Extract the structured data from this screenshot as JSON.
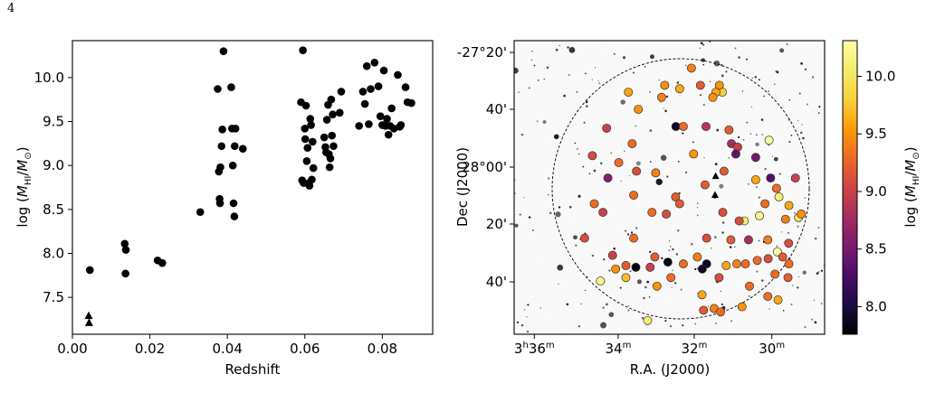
{
  "page_number": "4",
  "chart_data": [
    {
      "type": "scatter",
      "xlabel": "Redshift",
      "ylabel": "log (M_HI/M_⊙)",
      "xlim": [
        0.0,
        0.093
      ],
      "ylim": [
        7.08,
        10.42
      ],
      "xticks": [
        "0.00",
        "0.02",
        "0.04",
        "0.06",
        "0.08"
      ],
      "xtick_values": [
        0.0,
        0.02,
        0.04,
        0.06,
        0.08
      ],
      "yticks": [
        "7.5",
        "8.0",
        "8.5",
        "9.0",
        "9.5",
        "10.0"
      ],
      "ytick_values": [
        7.5,
        8.0,
        8.5,
        9.0,
        9.5,
        10.0
      ],
      "grid": false,
      "series": [
        {
          "marker": "circle",
          "color": "#000000",
          "points": [
            [
              0.0045,
              7.81
            ],
            [
              0.0135,
              8.11
            ],
            [
              0.0138,
              8.04
            ],
            [
              0.0137,
              7.77
            ],
            [
              0.022,
              7.92
            ],
            [
              0.0232,
              7.89
            ],
            [
              0.033,
              8.47
            ],
            [
              0.0375,
              9.87
            ],
            [
              0.038,
              8.62
            ],
            [
              0.0381,
              8.57
            ],
            [
              0.0378,
              8.93
            ],
            [
              0.0382,
              8.98
            ],
            [
              0.0385,
              9.22
            ],
            [
              0.0387,
              9.41
            ],
            [
              0.039,
              10.3
            ],
            [
              0.041,
              9.89
            ],
            [
              0.0412,
              9.42
            ],
            [
              0.0414,
              9.0
            ],
            [
              0.0416,
              8.57
            ],
            [
              0.0418,
              8.42
            ],
            [
              0.0419,
              9.22
            ],
            [
              0.0421,
              9.42
            ],
            [
              0.044,
              9.19
            ],
            [
              0.059,
              9.72
            ],
            [
              0.0593,
              8.83
            ],
            [
              0.0595,
              10.31
            ],
            [
              0.0597,
              8.8
            ],
            [
              0.06,
              9.42
            ],
            [
              0.0601,
              9.3
            ],
            [
              0.0603,
              9.68
            ],
            [
              0.0605,
              9.05
            ],
            [
              0.0607,
              9.2
            ],
            [
              0.061,
              8.8
            ],
            [
              0.0612,
              8.77
            ],
            [
              0.0614,
              9.53
            ],
            [
              0.0616,
              9.46
            ],
            [
              0.0618,
              8.84
            ],
            [
              0.062,
              9.27
            ],
            [
              0.0622,
              8.97
            ],
            [
              0.065,
              9.32
            ],
            [
              0.0653,
              9.21
            ],
            [
              0.0655,
              9.15
            ],
            [
              0.0657,
              9.52
            ],
            [
              0.066,
              9.69
            ],
            [
              0.0662,
              9.13
            ],
            [
              0.0664,
              8.98
            ],
            [
              0.0666,
              9.08
            ],
            [
              0.0668,
              9.75
            ],
            [
              0.067,
              9.34
            ],
            [
              0.0672,
              9.58
            ],
            [
              0.0674,
              9.22
            ],
            [
              0.069,
              9.6
            ],
            [
              0.0694,
              9.84
            ],
            [
              0.074,
              9.45
            ],
            [
              0.075,
              9.84
            ],
            [
              0.0755,
              9.7
            ],
            [
              0.076,
              10.13
            ],
            [
              0.0765,
              9.47
            ],
            [
              0.077,
              9.87
            ],
            [
              0.078,
              10.17
            ],
            [
              0.079,
              9.9
            ],
            [
              0.0795,
              9.56
            ],
            [
              0.08,
              9.46
            ],
            [
              0.0804,
              10.08
            ],
            [
              0.0808,
              9.45
            ],
            [
              0.0812,
              9.53
            ],
            [
              0.0816,
              9.35
            ],
            [
              0.082,
              9.45
            ],
            [
              0.0824,
              9.65
            ],
            [
              0.084,
              10.03
            ],
            [
              0.0845,
              9.44
            ],
            [
              0.0848,
              9.46
            ],
            [
              0.086,
              9.89
            ],
            [
              0.0865,
              9.72
            ],
            [
              0.0875,
              9.71
            ],
            [
              0.083,
              9.42
            ]
          ]
        },
        {
          "marker": "triangle",
          "color": "#000000",
          "points": [
            [
              0.0042,
              7.29
            ],
            [
              0.0043,
              7.21
            ]
          ]
        }
      ]
    },
    {
      "type": "scatter",
      "xlabel": "R.A. (J2000)",
      "ylabel": "Dec (J2000)",
      "xticks": [
        "3h36m",
        "34m",
        "32m",
        "30m"
      ],
      "yticks": [
        "-27°20'",
        "40'",
        "-28°00'",
        "20'",
        "40'"
      ],
      "colorbar": {
        "label": "log (M_HI/M_⊙)",
        "range": [
          7.76,
          10.31
        ],
        "ticks": [
          "8.0",
          "8.5",
          "9.0",
          "9.5",
          "10.0"
        ],
        "tick_values": [
          8.0,
          8.5,
          9.0,
          9.5,
          10.0
        ],
        "colormap": "inferno"
      },
      "points": [
        [
          67.05,
          -27.52,
          9.8
        ],
        [
          65.0,
          -27.52,
          9.6
        ],
        [
          57.1,
          -27.38,
          9.4
        ],
        [
          60.0,
          -27.48,
          9.2
        ],
        [
          66.1,
          -27.48,
          9.5
        ],
        [
          53.3,
          -27.5,
          9.6
        ],
        [
          48.5,
          -27.48,
          9.5
        ],
        [
          36.8,
          -27.52,
          9.6
        ],
        [
          47.5,
          -27.55,
          9.4
        ],
        [
          64.0,
          -27.55,
          9.5
        ],
        [
          40.0,
          -27.62,
          9.5
        ],
        [
          29.8,
          -27.73,
          9.0
        ],
        [
          52.1,
          -27.72,
          7.9
        ],
        [
          54.5,
          -27.72,
          9.3
        ],
        [
          61.8,
          -27.72,
          8.9
        ],
        [
          69.2,
          -27.74,
          9.2
        ],
        [
          70.0,
          -27.82,
          8.8
        ],
        [
          72.0,
          -27.84,
          9.0
        ],
        [
          38.0,
          -27.82,
          9.3
        ],
        [
          25.2,
          -27.89,
          9.1
        ],
        [
          33.7,
          -27.93,
          9.3
        ],
        [
          57.8,
          -27.88,
          9.5
        ],
        [
          71.4,
          -27.88,
          8.4
        ],
        [
          77.8,
          -27.9,
          8.5
        ],
        [
          39.4,
          -27.98,
          9.1
        ],
        [
          67.6,
          -27.98,
          9.2
        ],
        [
          82.1,
          -27.8,
          10.3
        ],
        [
          30.2,
          -28.02,
          8.6
        ],
        [
          45.6,
          -27.99,
          9.4
        ],
        [
          82.6,
          -28.02,
          8.3
        ],
        [
          77.8,
          -28.03,
          9.6
        ],
        [
          90.6,
          -28.02,
          9.0
        ],
        [
          61.5,
          -28.06,
          9.2
        ],
        [
          38.5,
          -28.12,
          9.3
        ],
        [
          52.0,
          -28.13,
          9.2
        ],
        [
          85.3,
          -28.13,
          10.1
        ],
        [
          84.5,
          -28.08,
          9.3
        ],
        [
          25.8,
          -28.17,
          9.3
        ],
        [
          53.3,
          -28.17,
          9.2
        ],
        [
          80.8,
          -28.17,
          9.3
        ],
        [
          88.5,
          -28.18,
          9.6
        ],
        [
          28.6,
          -28.22,
          9.0
        ],
        [
          44.4,
          -28.22,
          9.3
        ],
        [
          49.0,
          -28.23,
          9.1
        ],
        [
          67.2,
          -28.22,
          9.1
        ],
        [
          74.1,
          -28.27,
          10.1
        ],
        [
          72.5,
          -28.27,
          9.1
        ],
        [
          79.0,
          -28.24,
          10.2
        ],
        [
          87.4,
          -28.26,
          9.4
        ],
        [
          91.6,
          -28.25,
          10.0
        ],
        [
          92.5,
          -28.23,
          9.5
        ],
        [
          22.7,
          -28.37,
          9.1
        ],
        [
          38.5,
          -28.37,
          9.3
        ],
        [
          62.0,
          -28.37,
          9.1
        ],
        [
          69.8,
          -28.38,
          9.2
        ],
        [
          75.5,
          -28.38,
          8.8
        ],
        [
          81.7,
          -28.38,
          9.4
        ],
        [
          88.4,
          -28.4,
          9.1
        ],
        [
          84.8,
          -28.45,
          10.3
        ],
        [
          31.7,
          -28.47,
          9.0
        ],
        [
          45.3,
          -28.48,
          9.2
        ],
        [
          59.0,
          -28.48,
          9.4
        ],
        [
          49.5,
          -28.51,
          7.8
        ],
        [
          54.5,
          -28.52,
          9.3
        ],
        [
          62.0,
          -28.52,
          7.9
        ],
        [
          68.3,
          -28.53,
          9.6
        ],
        [
          71.7,
          -28.52,
          9.4
        ],
        [
          74.5,
          -28.52,
          9.3
        ],
        [
          78.3,
          -28.5,
          9.3
        ],
        [
          81.8,
          -28.49,
          9.1
        ],
        [
          88.5,
          -28.52,
          9.3
        ],
        [
          32.7,
          -28.55,
          9.5
        ],
        [
          36.0,
          -28.53,
          9.2
        ],
        [
          39.2,
          -28.54,
          7.8
        ],
        [
          43.8,
          -28.54,
          9.0
        ],
        [
          60.6,
          -28.55,
          7.9
        ],
        [
          50.5,
          -28.6,
          9.3
        ],
        [
          36.0,
          -28.6,
          9.7
        ],
        [
          66.0,
          -28.6,
          9.1
        ],
        [
          84.0,
          -28.58,
          9.3
        ],
        [
          46.0,
          -28.65,
          9.5
        ],
        [
          75.8,
          -28.65,
          9.3
        ],
        [
          88.2,
          -28.6,
          9.2
        ],
        [
          60.5,
          -28.7,
          9.6
        ],
        [
          81.7,
          -28.71,
          9.3
        ],
        [
          85.0,
          -28.73,
          9.6
        ],
        [
          64.4,
          -28.78,
          9.4
        ],
        [
          61.0,
          -28.79,
          9.2
        ],
        [
          73.4,
          -28.77,
          9.5
        ],
        [
          66.5,
          -28.8,
          9.3
        ],
        [
          43.0,
          -28.85,
          10.1
        ],
        [
          27.8,
          -28.62,
          10.2
        ],
        [
          86.5,
          -28.48,
          9.2
        ]
      ],
      "circle_marker_note": "",
      "triangle_points": [
        [
          64.7,
          -28.12
        ],
        [
          64.9,
          -28.01
        ]
      ]
    }
  ]
}
